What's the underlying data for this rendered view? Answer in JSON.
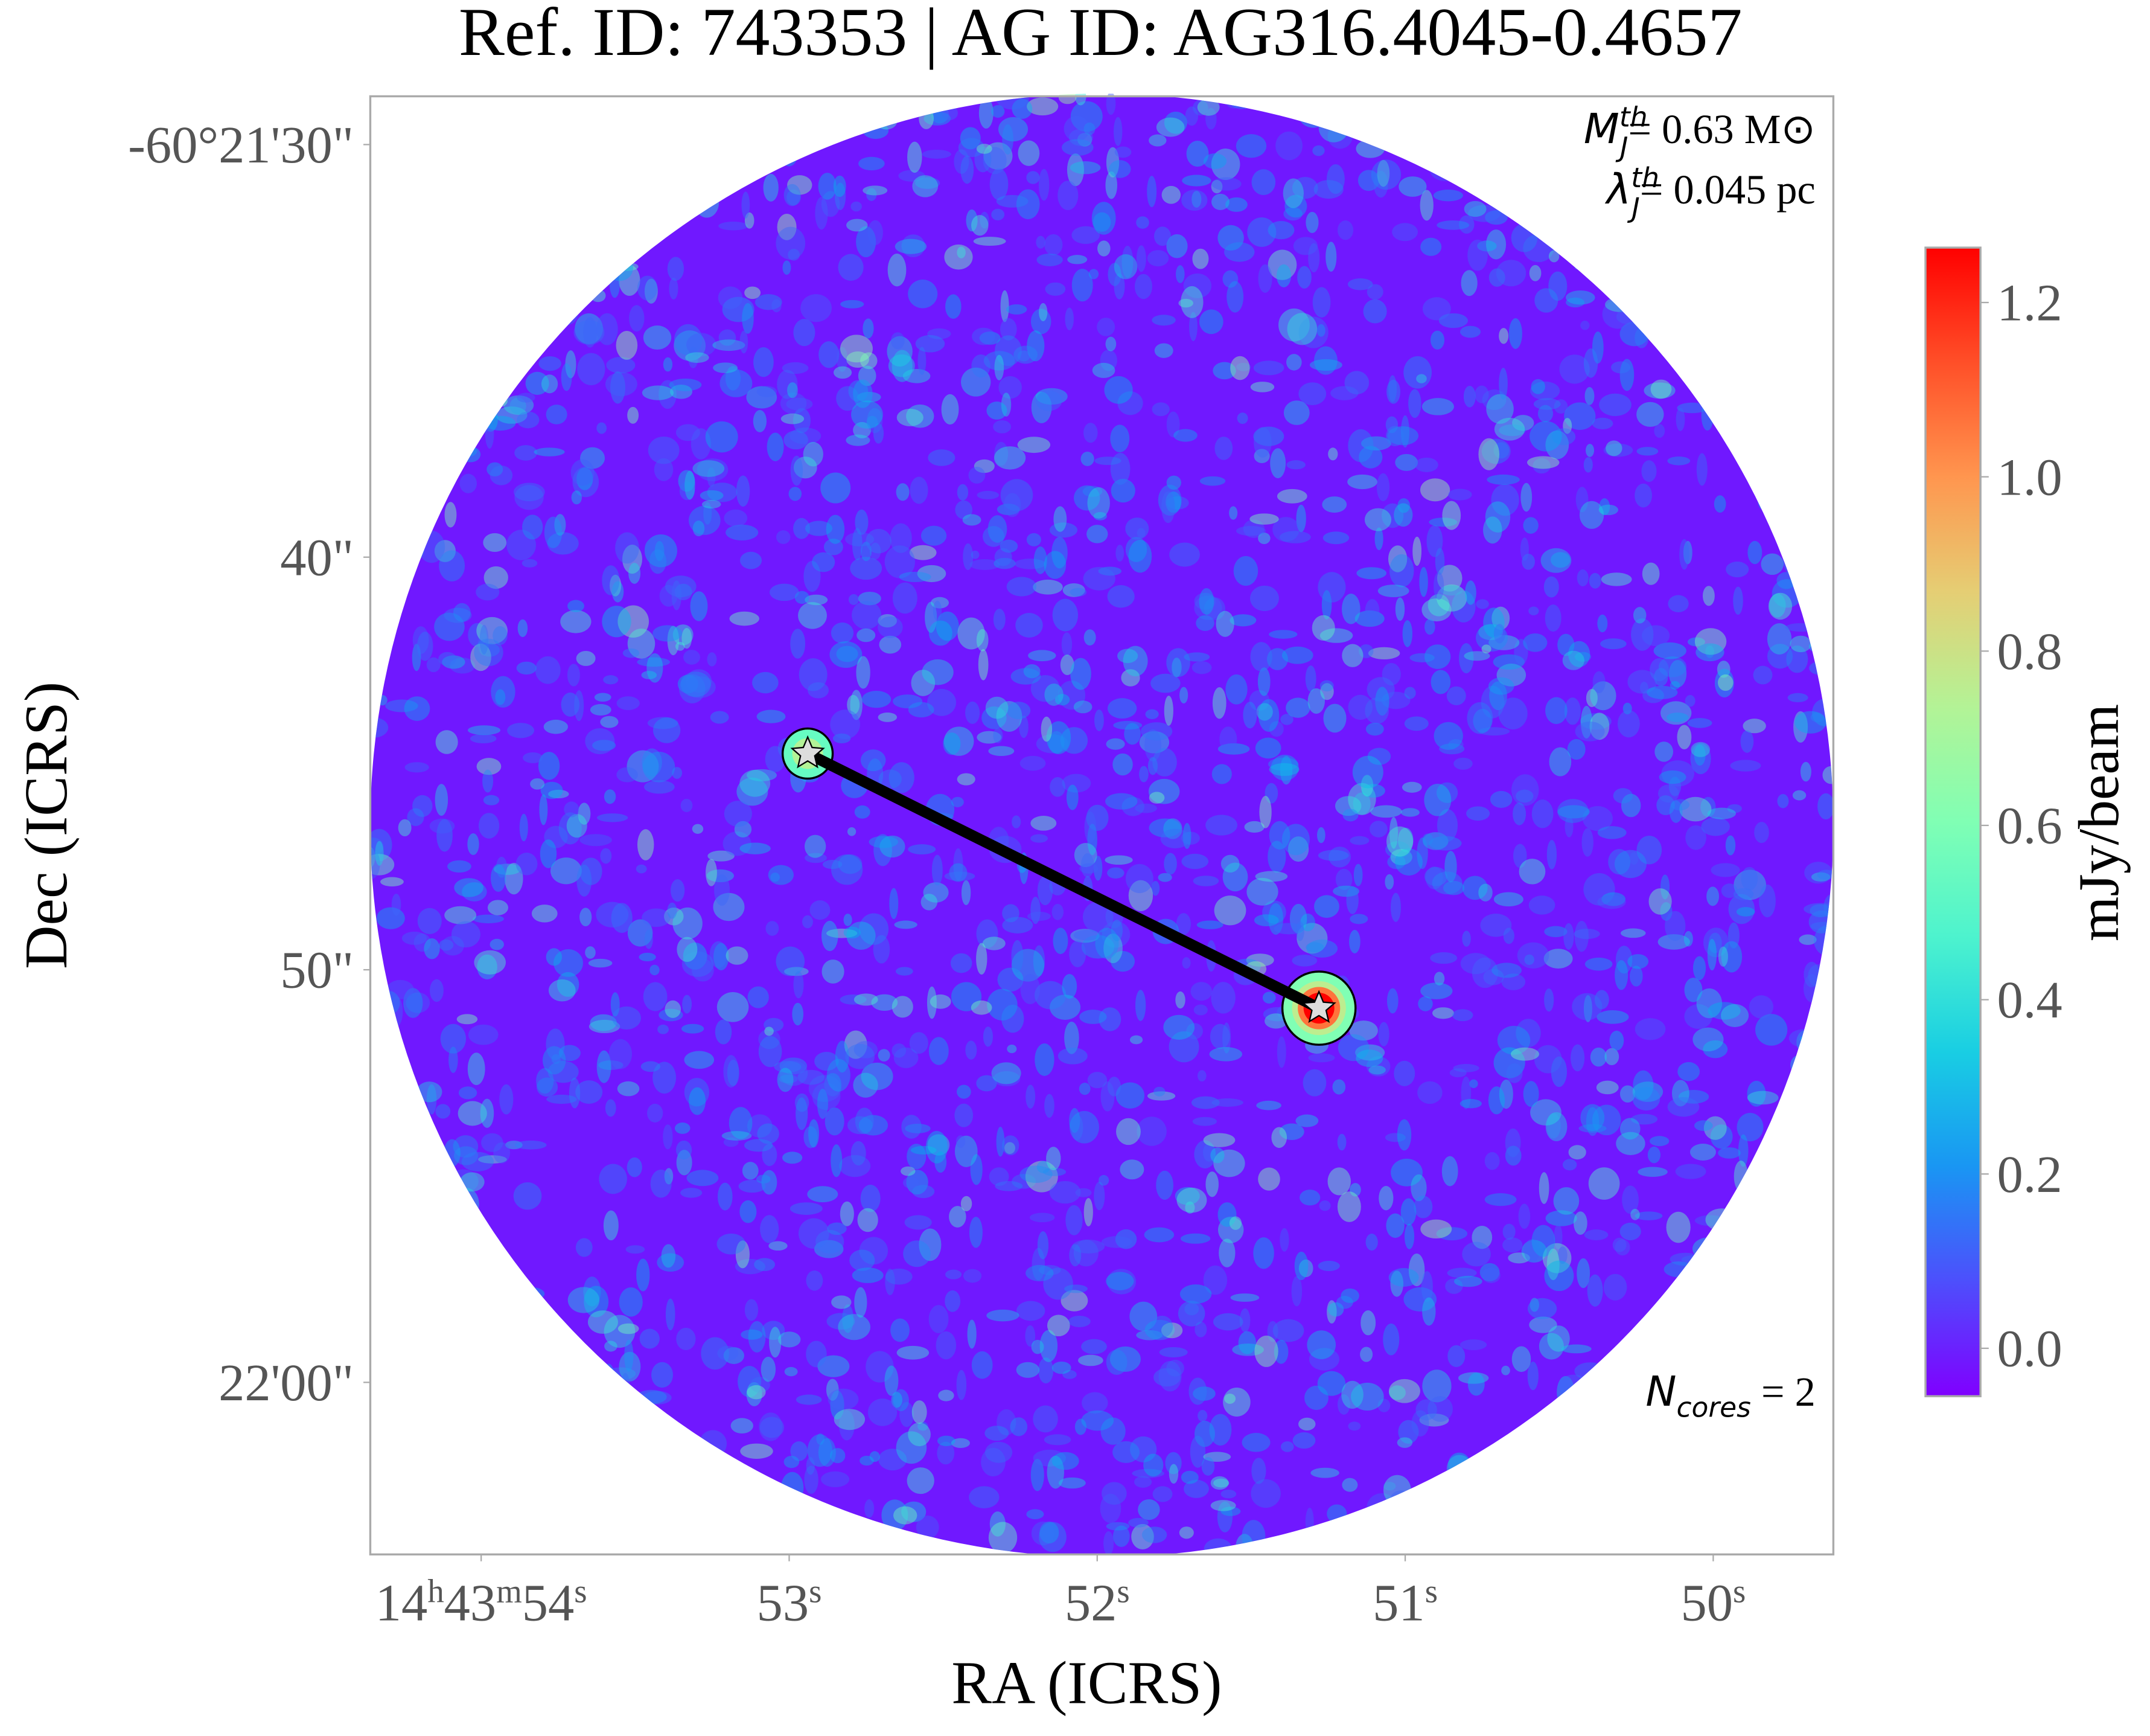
{
  "chart_data": {
    "type": "image",
    "title": "Ref. ID: 743353 | AG ID: AG316.4045-0.4657",
    "xlabel": "RA (ICRS)",
    "ylabel": "Dec (ICRS)",
    "xlim": [
      54.36,
      49.61
    ],
    "ylim": [
      64.17,
      28.83
    ],
    "xticks": [
      {
        "value": 54,
        "label": "14h43m54s"
      },
      {
        "value": 53,
        "label": "53s"
      },
      {
        "value": 52,
        "label": "52s"
      },
      {
        "value": 51,
        "label": "51s"
      },
      {
        "value": 50,
        "label": "50s"
      }
    ],
    "yticks": [
      {
        "value": 30,
        "label": "-60°21'30\""
      },
      {
        "value": 40,
        "label": "40\""
      },
      {
        "value": 50,
        "label": "50\""
      },
      {
        "value": 60,
        "label": "22'00\""
      }
    ],
    "colormap": "rainbow",
    "colorbar": {
      "label": "mJy/beam",
      "clim": [
        -0.055,
        1.263
      ],
      "ticks": [
        {
          "value": 0,
          "label": "0.0"
        },
        {
          "value": 0.2,
          "label": "0.2"
        },
        {
          "value": 0.4,
          "label": "0.4"
        },
        {
          "value": 0.6,
          "label": "0.6"
        },
        {
          "value": 0.8,
          "label": "0.8"
        },
        {
          "value": 1,
          "label": "1.0"
        },
        {
          "value": 1.2,
          "label": "1.2"
        }
      ]
    },
    "cores": [
      {
        "ra": 52.94,
        "dec": 44.76
      },
      {
        "ra": 51.28,
        "dec": 50.93
      }
    ],
    "annotations": [
      {
        "symbol": "M",
        "sup": "th",
        "sub": "J",
        "text": "= 0.63 M⊙"
      },
      {
        "symbol": "λ",
        "sup": "th",
        "sub": "J",
        "text": "= 0.045 pc"
      },
      {
        "symbol": "N",
        "sub": "cores",
        "text": " = 2"
      }
    ]
  }
}
